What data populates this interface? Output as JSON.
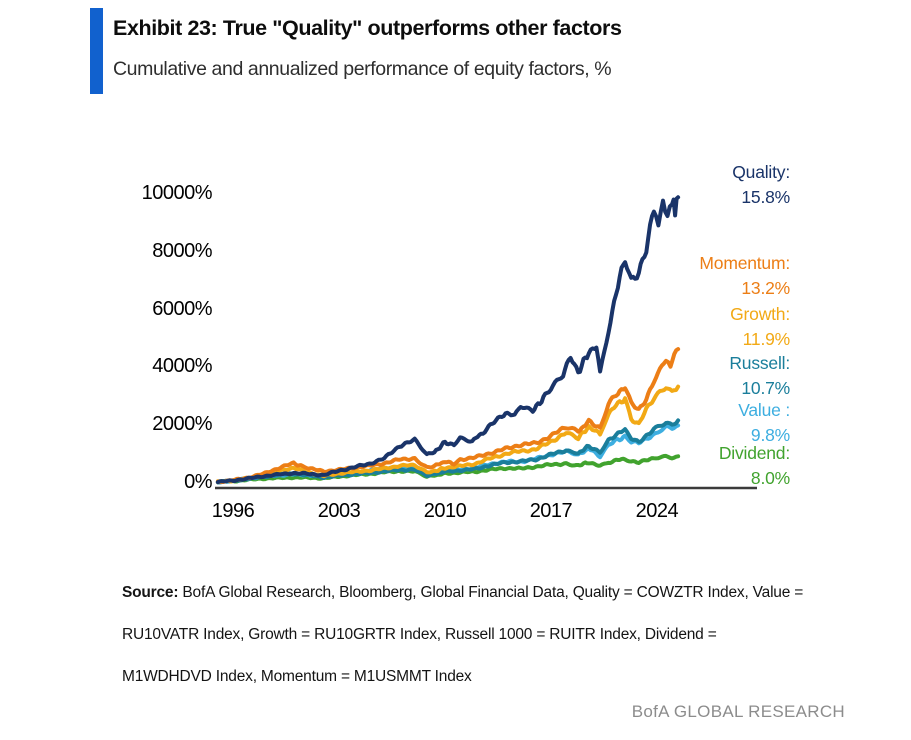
{
  "header": {
    "exhibit_title": "Exhibit 23: True \"Quality\" outperforms other factors",
    "subtitle": "Cumulative and annualized performance of equity factors, %",
    "accent_color": "#1161CE"
  },
  "chart_data": {
    "type": "line",
    "title": "Cumulative and annualized performance of equity factors, %",
    "xlabel": "",
    "ylabel": "",
    "x_ticks": [
      1996,
      2003,
      2010,
      2017,
      2024
    ],
    "y_ticks": [
      10000,
      8000,
      6000,
      4000,
      2000,
      0
    ],
    "y_unit": "%",
    "x_range": [
      1995,
      2025.4
    ],
    "y_range": [
      0,
      10400
    ],
    "grid": false,
    "legend_position": "right",
    "axis_color": "#3b3b3b",
    "series": [
      {
        "name": "Quality",
        "label": "Quality:",
        "annualized": "15.8%",
        "color": "#1A3469",
        "points": [
          [
            1995,
            0
          ],
          [
            1996,
            50
          ],
          [
            1997,
            120
          ],
          [
            1998,
            200
          ],
          [
            1999,
            260
          ],
          [
            2000,
            310
          ],
          [
            2001,
            280
          ],
          [
            2002,
            240
          ],
          [
            2003,
            390
          ],
          [
            2004,
            510
          ],
          [
            2005,
            630
          ],
          [
            2006,
            820
          ],
          [
            2007,
            1250
          ],
          [
            2008,
            1450
          ],
          [
            2008.8,
            950
          ],
          [
            2009.3,
            1020
          ],
          [
            2010,
            1380
          ],
          [
            2010.6,
            1280
          ],
          [
            2011,
            1520
          ],
          [
            2011.8,
            1430
          ],
          [
            2012.5,
            1700
          ],
          [
            2013,
            1950
          ],
          [
            2014,
            2400
          ],
          [
            2014.6,
            2280
          ],
          [
            2015,
            2600
          ],
          [
            2015.8,
            2460
          ],
          [
            2016.5,
            2900
          ],
          [
            2017,
            3200
          ],
          [
            2017.8,
            3700
          ],
          [
            2018.3,
            4300
          ],
          [
            2018.8,
            3800
          ],
          [
            2019.5,
            4500
          ],
          [
            2020,
            4700
          ],
          [
            2020.25,
            3720
          ],
          [
            2020.8,
            5300
          ],
          [
            2021.3,
            6500
          ],
          [
            2021.9,
            7800
          ],
          [
            2022.3,
            7000
          ],
          [
            2022.8,
            7300
          ],
          [
            2023.3,
            8000
          ],
          [
            2023.8,
            9400
          ],
          [
            2024.1,
            9100
          ],
          [
            2024.4,
            9800
          ],
          [
            2024.7,
            9300
          ],
          [
            2025,
            9700
          ],
          [
            2025.2,
            9450
          ],
          [
            2025.4,
            9850
          ]
        ]
      },
      {
        "name": "Momentum",
        "label": "Momentum:",
        "annualized": "13.2%",
        "color": "#EC7E16",
        "points": [
          [
            1995,
            0
          ],
          [
            1996,
            60
          ],
          [
            1997,
            150
          ],
          [
            1998,
            280
          ],
          [
            1999,
            480
          ],
          [
            2000,
            650
          ],
          [
            2000.6,
            540
          ],
          [
            2001,
            470
          ],
          [
            2002,
            370
          ],
          [
            2003,
            420
          ],
          [
            2004,
            500
          ],
          [
            2005,
            560
          ],
          [
            2006,
            650
          ],
          [
            2007,
            780
          ],
          [
            2008,
            820
          ],
          [
            2008.8,
            510
          ],
          [
            2009.3,
            560
          ],
          [
            2010,
            700
          ],
          [
            2010.6,
            640
          ],
          [
            2011,
            780
          ],
          [
            2012,
            850
          ],
          [
            2013,
            1000
          ],
          [
            2014,
            1150
          ],
          [
            2015,
            1290
          ],
          [
            2016,
            1340
          ],
          [
            2017,
            1600
          ],
          [
            2018,
            1900
          ],
          [
            2018.8,
            1740
          ],
          [
            2019.5,
            2100
          ],
          [
            2020.25,
            1880
          ],
          [
            2020.8,
            2700
          ],
          [
            2021.3,
            3050
          ],
          [
            2021.9,
            3250
          ],
          [
            2022.3,
            2700
          ],
          [
            2022.8,
            2480
          ],
          [
            2023.3,
            2900
          ],
          [
            2023.8,
            3500
          ],
          [
            2024.2,
            3900
          ],
          [
            2024.6,
            4300
          ],
          [
            2024.9,
            4050
          ],
          [
            2025.4,
            4600
          ]
        ]
      },
      {
        "name": "Growth",
        "label": "Growth:",
        "annualized": "11.9%",
        "color": "#F2A915",
        "points": [
          [
            1995,
            0
          ],
          [
            1996,
            50
          ],
          [
            1997,
            130
          ],
          [
            1998,
            250
          ],
          [
            1999,
            400
          ],
          [
            2000,
            480
          ],
          [
            2001,
            330
          ],
          [
            2002,
            210
          ],
          [
            2003,
            300
          ],
          [
            2004,
            350
          ],
          [
            2005,
            400
          ],
          [
            2006,
            470
          ],
          [
            2007,
            560
          ],
          [
            2008,
            580
          ],
          [
            2008.8,
            320
          ],
          [
            2009.3,
            370
          ],
          [
            2010,
            490
          ],
          [
            2011,
            550
          ],
          [
            2012,
            630
          ],
          [
            2013,
            820
          ],
          [
            2014,
            970
          ],
          [
            2015,
            1070
          ],
          [
            2016,
            1130
          ],
          [
            2017,
            1400
          ],
          [
            2018,
            1700
          ],
          [
            2018.8,
            1540
          ],
          [
            2019.5,
            1900
          ],
          [
            2020.25,
            1640
          ],
          [
            2020.8,
            2350
          ],
          [
            2021.3,
            2650
          ],
          [
            2021.9,
            2900
          ],
          [
            2022.3,
            2200
          ],
          [
            2022.8,
            1990
          ],
          [
            2023.3,
            2500
          ],
          [
            2023.8,
            2900
          ],
          [
            2024.2,
            3100
          ],
          [
            2024.6,
            3250
          ],
          [
            2025,
            3080
          ],
          [
            2025.4,
            3300
          ]
        ]
      },
      {
        "name": "Russell",
        "label": "Russell:",
        "annualized": "10.7%",
        "color": "#1A7E9B",
        "points": [
          [
            1995,
            0
          ],
          [
            1996,
            40
          ],
          [
            1997,
            110
          ],
          [
            1998,
            180
          ],
          [
            1999,
            250
          ],
          [
            2000,
            290
          ],
          [
            2001,
            230
          ],
          [
            2002,
            160
          ],
          [
            2003,
            220
          ],
          [
            2004,
            270
          ],
          [
            2005,
            310
          ],
          [
            2006,
            370
          ],
          [
            2007,
            420
          ],
          [
            2008,
            430
          ],
          [
            2008.8,
            230
          ],
          [
            2009.3,
            270
          ],
          [
            2010,
            360
          ],
          [
            2011,
            400
          ],
          [
            2012,
            450
          ],
          [
            2013,
            580
          ],
          [
            2014,
            680
          ],
          [
            2015,
            710
          ],
          [
            2016,
            780
          ],
          [
            2017,
            950
          ],
          [
            2018,
            1100
          ],
          [
            2018.8,
            990
          ],
          [
            2019.5,
            1250
          ],
          [
            2020.25,
            1040
          ],
          [
            2020.8,
            1450
          ],
          [
            2021.3,
            1650
          ],
          [
            2021.9,
            1800
          ],
          [
            2022.3,
            1500
          ],
          [
            2022.8,
            1400
          ],
          [
            2023.3,
            1600
          ],
          [
            2023.8,
            1800
          ],
          [
            2024.2,
            1950
          ],
          [
            2024.6,
            2060
          ],
          [
            2025,
            2000
          ],
          [
            2025.4,
            2130
          ]
        ]
      },
      {
        "name": "Value",
        "label": "Value :",
        "annualized": "9.8%",
        "color": "#3DAEE0",
        "points": [
          [
            1995,
            0
          ],
          [
            1996,
            45
          ],
          [
            1997,
            120
          ],
          [
            1998,
            190
          ],
          [
            1999,
            230
          ],
          [
            2000,
            260
          ],
          [
            2001,
            240
          ],
          [
            2002,
            180
          ],
          [
            2003,
            260
          ],
          [
            2004,
            330
          ],
          [
            2005,
            390
          ],
          [
            2006,
            470
          ],
          [
            2007,
            510
          ],
          [
            2008,
            490
          ],
          [
            2008.8,
            250
          ],
          [
            2009.3,
            300
          ],
          [
            2010,
            400
          ],
          [
            2011,
            430
          ],
          [
            2012,
            490
          ],
          [
            2013,
            620
          ],
          [
            2014,
            700
          ],
          [
            2015,
            705
          ],
          [
            2016,
            800
          ],
          [
            2017,
            950
          ],
          [
            2018,
            1050
          ],
          [
            2018.8,
            940
          ],
          [
            2019.5,
            1150
          ],
          [
            2020.25,
            890
          ],
          [
            2020.8,
            1250
          ],
          [
            2021.3,
            1450
          ],
          [
            2021.9,
            1560
          ],
          [
            2022.3,
            1400
          ],
          [
            2022.8,
            1340
          ],
          [
            2023.3,
            1500
          ],
          [
            2023.8,
            1650
          ],
          [
            2024.2,
            1800
          ],
          [
            2024.6,
            1900
          ],
          [
            2025,
            1840
          ],
          [
            2025.4,
            1960
          ]
        ]
      },
      {
        "name": "Dividend",
        "label": "Dividend:",
        "annualized": "8.0%",
        "color": "#41A32E",
        "points": [
          [
            1995,
            0
          ],
          [
            1996,
            30
          ],
          [
            1997,
            80
          ],
          [
            1998,
            120
          ],
          [
            1999,
            140
          ],
          [
            2000,
            160
          ],
          [
            2001,
            150
          ],
          [
            2002,
            130
          ],
          [
            2003,
            190
          ],
          [
            2004,
            240
          ],
          [
            2005,
            280
          ],
          [
            2006,
            340
          ],
          [
            2007,
            380
          ],
          [
            2008,
            360
          ],
          [
            2008.8,
            190
          ],
          [
            2009.3,
            220
          ],
          [
            2010,
            300
          ],
          [
            2011,
            330
          ],
          [
            2012,
            360
          ],
          [
            2013,
            430
          ],
          [
            2014,
            480
          ],
          [
            2015,
            465
          ],
          [
            2016,
            530
          ],
          [
            2017,
            600
          ],
          [
            2018,
            640
          ],
          [
            2018.8,
            575
          ],
          [
            2019.5,
            680
          ],
          [
            2020.25,
            550
          ],
          [
            2020.8,
            680
          ],
          [
            2021.3,
            750
          ],
          [
            2021.9,
            800
          ],
          [
            2022.3,
            720
          ],
          [
            2022.8,
            695
          ],
          [
            2023.3,
            750
          ],
          [
            2023.8,
            800
          ],
          [
            2024.2,
            845
          ],
          [
            2024.6,
            875
          ],
          [
            2025,
            855
          ],
          [
            2025.4,
            890
          ]
        ]
      }
    ]
  },
  "source": {
    "prefix": "Source:",
    "lines": [
      " BofA Global Research, Bloomberg, Global Financial Data, Quality = COWZTR Index, Value =",
      "RU10VATR Index, Growth = RU10GRTR Index, Russell 1000 = RUITR Index, Dividend =",
      "M1WDHDVD Index, Momentum = M1USMMT Index"
    ]
  },
  "footer": {
    "brand": "BofA GLOBAL RESEARCH"
  }
}
